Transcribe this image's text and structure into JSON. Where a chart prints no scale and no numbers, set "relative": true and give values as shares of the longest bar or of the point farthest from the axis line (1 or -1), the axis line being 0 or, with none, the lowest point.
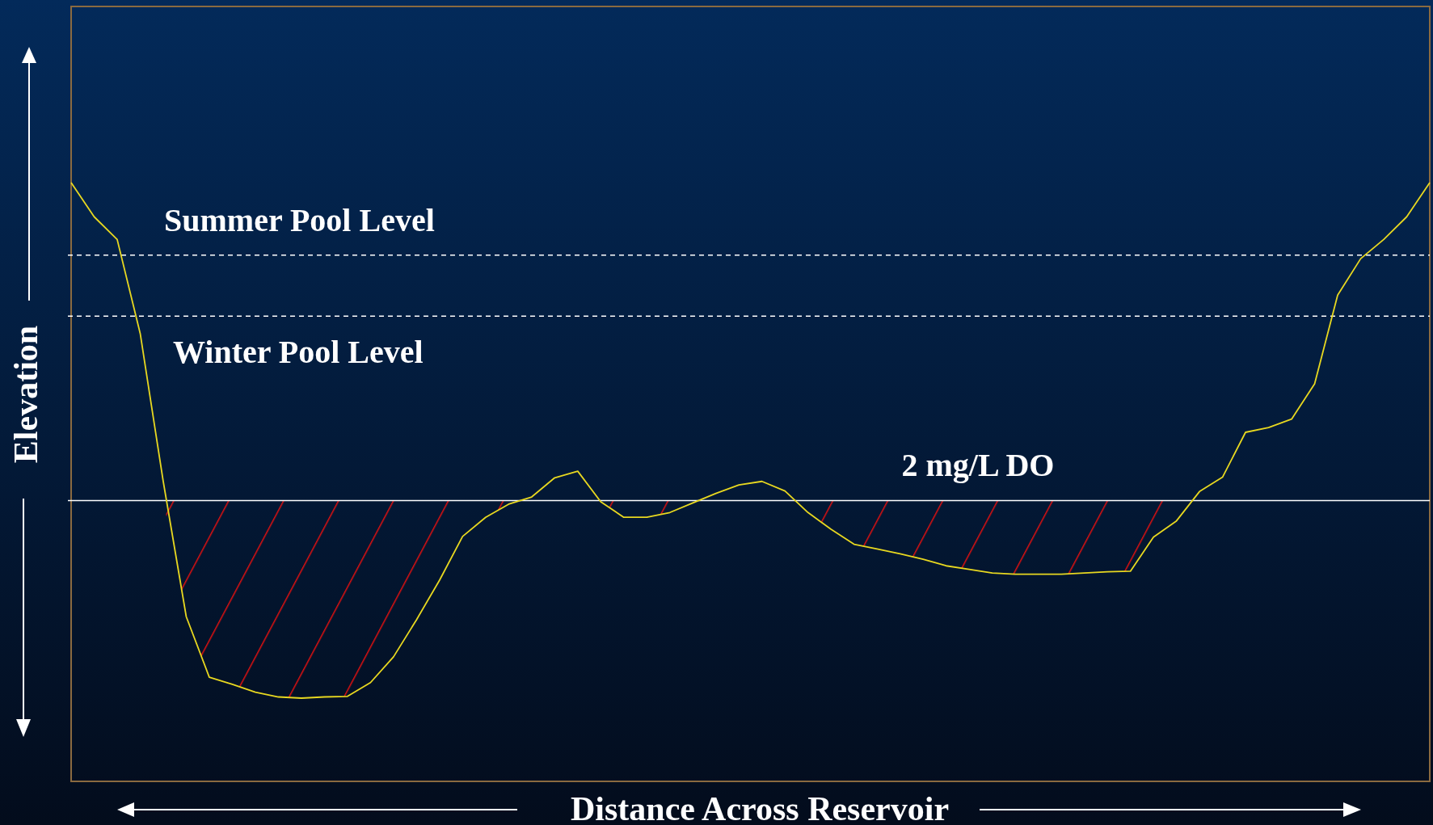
{
  "chart_data": {
    "type": "line",
    "relative": true,
    "xlabel": "Distance Across Reservoir",
    "ylabel": "Elevation",
    "line_style": "solid",
    "categories": [
      null,
      null,
      null,
      null,
      null,
      null,
      null,
      null,
      null,
      null,
      null,
      null,
      null,
      null,
      null,
      null,
      null,
      null,
      null,
      null,
      null,
      null,
      null,
      null,
      null,
      null,
      null,
      null,
      null,
      null,
      null,
      null,
      null,
      null,
      null,
      null,
      null,
      null,
      null,
      null,
      null,
      null,
      null,
      null,
      null,
      null,
      null,
      null,
      null,
      null,
      null,
      null,
      null,
      null,
      null,
      null,
      null,
      null,
      null,
      null
    ],
    "series": [
      {
        "color": "#e8d820",
        "values": [
          1,
          0.943,
          0.905,
          0.748,
          0.501,
          0.275,
          0.174,
          0.162,
          0.149,
          0.141,
          0.139,
          0.141,
          0.142,
          0.165,
          0.208,
          0.27,
          0.336,
          0.409,
          0.441,
          0.463,
          0.475,
          0.507,
          0.518,
          0.467,
          0.441,
          0.441,
          0.449,
          0.465,
          0.481,
          0.495,
          0.501,
          0.485,
          0.449,
          0.421,
          0.396,
          0.388,
          0.38,
          0.371,
          0.36,
          0.354,
          0.348,
          0.346,
          0.346,
          0.346,
          0.348,
          0.35,
          0.351,
          0.408,
          0.435,
          0.484,
          0.508,
          0.583,
          0.591,
          0.605,
          0.664,
          0.812,
          0.873,
          0.905,
          0.943,
          1
        ]
      }
    ],
    "ref_lines": [
      {
        "axis": "y",
        "value": 0.879,
        "label": "Summer Pool Level",
        "color": "#ffffff",
        "line_style": "dashed"
      },
      {
        "axis": "y",
        "value": 0.777,
        "label": "Winter Pool Level",
        "color": "#ffffff",
        "line_style": "dashed"
      },
      {
        "axis": "y",
        "value": 0.469,
        "label": "2 mg/L DO",
        "color": "#ffffff",
        "line_style": "solid"
      }
    ]
  }
}
